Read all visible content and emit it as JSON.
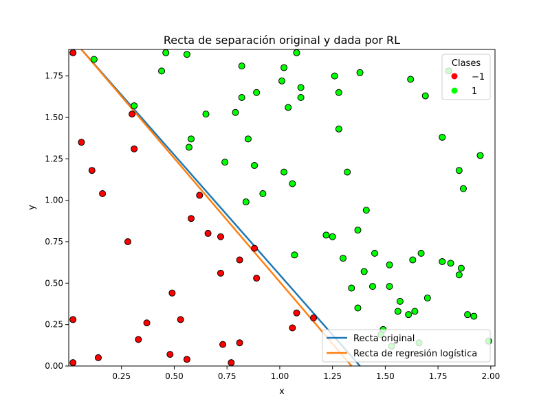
{
  "chart_data": {
    "type": "scatter",
    "title": "Recta de separación original y dada por RL",
    "xlabel": "x",
    "ylabel": "y",
    "xlim": [
      0.0,
      2.02
    ],
    "ylim": [
      0.0,
      1.91
    ],
    "xticks": [
      {
        "value": 0.25,
        "label": "0.25"
      },
      {
        "value": 0.5,
        "label": "0.50"
      },
      {
        "value": 0.75,
        "label": "0.75"
      },
      {
        "value": 1.0,
        "label": "1.00"
      },
      {
        "value": 1.25,
        "label": "1.25"
      },
      {
        "value": 1.5,
        "label": "1.50"
      },
      {
        "value": 1.75,
        "label": "1.75"
      },
      {
        "value": 2.0,
        "label": "2.00"
      }
    ],
    "yticks": [
      {
        "value": 0.0,
        "label": "0.00"
      },
      {
        "value": 0.25,
        "label": "0.25"
      },
      {
        "value": 0.5,
        "label": "0.50"
      },
      {
        "value": 0.75,
        "label": "0.75"
      },
      {
        "value": 1.0,
        "label": "1.00"
      },
      {
        "value": 1.25,
        "label": "1.25"
      },
      {
        "value": 1.5,
        "label": "1.50"
      },
      {
        "value": 1.75,
        "label": "1.75"
      }
    ],
    "grid": false,
    "scatter_series": [
      {
        "name": "−1",
        "color": "#ff0000",
        "points": [
          [
            0.02,
            1.89
          ],
          [
            0.06,
            1.35
          ],
          [
            0.11,
            1.18
          ],
          [
            0.16,
            1.04
          ],
          [
            0.3,
            1.52
          ],
          [
            0.31,
            1.31
          ],
          [
            0.28,
            0.75
          ],
          [
            0.62,
            1.03
          ],
          [
            0.58,
            0.89
          ],
          [
            0.66,
            0.8
          ],
          [
            0.72,
            0.78
          ],
          [
            0.88,
            0.71
          ],
          [
            0.81,
            0.64
          ],
          [
            0.72,
            0.56
          ],
          [
            0.89,
            0.53
          ],
          [
            0.49,
            0.44
          ],
          [
            0.37,
            0.26
          ],
          [
            0.53,
            0.28
          ],
          [
            0.33,
            0.16
          ],
          [
            0.02,
            0.28
          ],
          [
            0.14,
            0.05
          ],
          [
            0.02,
            0.02
          ],
          [
            0.48,
            0.07
          ],
          [
            0.56,
            0.04
          ],
          [
            0.73,
            0.13
          ],
          [
            0.81,
            0.14
          ],
          [
            0.77,
            0.02
          ],
          [
            1.08,
            0.32
          ],
          [
            1.06,
            0.23
          ],
          [
            1.16,
            0.29
          ]
        ]
      },
      {
        "name": "1",
        "color": "#00ff00",
        "points": [
          [
            0.12,
            1.85
          ],
          [
            0.46,
            1.89
          ],
          [
            0.56,
            1.88
          ],
          [
            0.44,
            1.78
          ],
          [
            0.31,
            1.57
          ],
          [
            0.82,
            1.81
          ],
          [
            1.08,
            1.89
          ],
          [
            1.02,
            1.8
          ],
          [
            1.01,
            1.72
          ],
          [
            0.82,
            1.62
          ],
          [
            0.89,
            1.65
          ],
          [
            1.1,
            1.68
          ],
          [
            1.1,
            1.62
          ],
          [
            1.04,
            1.56
          ],
          [
            0.65,
            1.52
          ],
          [
            0.79,
            1.53
          ],
          [
            0.58,
            1.37
          ],
          [
            0.57,
            1.32
          ],
          [
            0.85,
            1.37
          ],
          [
            0.74,
            1.23
          ],
          [
            0.88,
            1.21
          ],
          [
            1.02,
            1.17
          ],
          [
            1.06,
            1.1
          ],
          [
            0.92,
            1.04
          ],
          [
            0.84,
            0.99
          ],
          [
            1.26,
            1.75
          ],
          [
            1.38,
            1.77
          ],
          [
            1.28,
            1.65
          ],
          [
            1.28,
            1.43
          ],
          [
            1.32,
            1.17
          ],
          [
            1.62,
            1.73
          ],
          [
            1.69,
            1.63
          ],
          [
            1.8,
            1.78
          ],
          [
            1.77,
            1.38
          ],
          [
            1.85,
            1.18
          ],
          [
            1.95,
            1.27
          ],
          [
            1.87,
            1.07
          ],
          [
            1.41,
            0.94
          ],
          [
            1.37,
            0.82
          ],
          [
            1.22,
            0.79
          ],
          [
            1.25,
            0.78
          ],
          [
            1.3,
            0.65
          ],
          [
            1.45,
            0.68
          ],
          [
            1.4,
            0.57
          ],
          [
            1.07,
            0.67
          ],
          [
            1.52,
            0.61
          ],
          [
            1.63,
            0.64
          ],
          [
            1.67,
            0.68
          ],
          [
            1.77,
            0.63
          ],
          [
            1.81,
            0.62
          ],
          [
            1.86,
            0.59
          ],
          [
            1.85,
            0.55
          ],
          [
            1.44,
            0.48
          ],
          [
            1.52,
            0.48
          ],
          [
            1.34,
            0.47
          ],
          [
            1.7,
            0.41
          ],
          [
            1.57,
            0.39
          ],
          [
            1.37,
            0.35
          ],
          [
            1.56,
            0.33
          ],
          [
            1.61,
            0.31
          ],
          [
            1.64,
            0.33
          ],
          [
            1.89,
            0.31
          ],
          [
            1.92,
            0.3
          ],
          [
            1.49,
            0.22
          ],
          [
            1.48,
            0.19
          ],
          [
            1.99,
            0.15
          ],
          [
            1.66,
            0.14
          ],
          [
            1.53,
            0.12
          ]
        ]
      }
    ],
    "lines": [
      {
        "name": "Recta original",
        "color": "#1f77b4",
        "points": [
          [
            0.06,
            1.91
          ],
          [
            1.38,
            0.0
          ]
        ]
      },
      {
        "name": "Recta de regresión logística",
        "color": "#ff7f0e",
        "points": [
          [
            0.06,
            1.91
          ],
          [
            1.34,
            0.0
          ]
        ]
      }
    ],
    "legends": {
      "classes": {
        "title": "Clases",
        "placement": "top-right",
        "entries": [
          {
            "label": "−1",
            "color": "#ff0000"
          },
          {
            "label": "1",
            "color": "#00ff00"
          }
        ]
      },
      "lines": {
        "placement": "bottom-right",
        "entries": [
          {
            "label": "Recta original",
            "color": "#1f77b4"
          },
          {
            "label": "Recta de regresión logística",
            "color": "#ff7f0e"
          }
        ]
      }
    }
  }
}
